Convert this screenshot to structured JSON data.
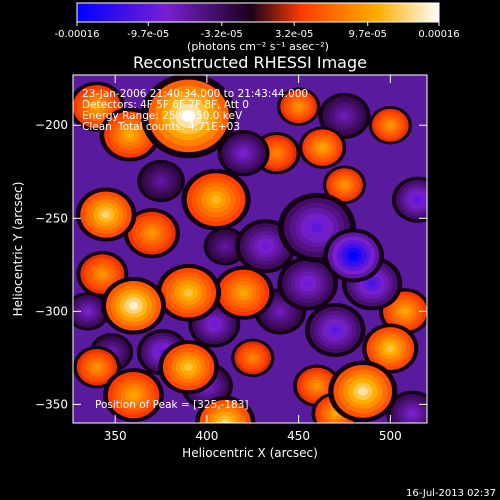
{
  "colorbar": {
    "tick_labels": [
      "-0.00016",
      "-9.7e-05",
      "-3.2e-05",
      "3.2e-05",
      "9.7e-05",
      "0.00016"
    ],
    "tick_values": [
      -0.00016,
      -9.7e-05,
      -3.2e-05,
      3.2e-05,
      9.7e-05,
      0.00016
    ],
    "range": [
      -0.00016,
      0.00016
    ],
    "units": "(photons cm⁻² s⁻¹ asec⁻²)",
    "colors": [
      "#0000ff",
      "#7a1fd0",
      "#1a001a",
      "#ff3a00",
      "#ffae00",
      "#ffffff"
    ]
  },
  "chart_data": {
    "type": "heatmap",
    "title": "Reconstructed RHESSI Image",
    "xlabel": "Heliocentric X (arcsec)",
    "ylabel": "Heliocentric Y (arcsec)",
    "xlim": [
      327,
      520
    ],
    "ylim": [
      -360,
      -173
    ],
    "x_ticks": [
      350,
      400,
      450,
      500
    ],
    "y_ticks": [
      -200,
      -250,
      -300,
      -350
    ],
    "annotations": {
      "time": "23-Jan-2006 21:40:34.000 to 21:43:44.000",
      "detectors": "Detectors: 4F 5F 6F 7F 8F, Att 0",
      "energy": "Energy Range: 25.0 - 50.0 keV",
      "method": "Clean",
      "counts": "Total counts: 4.71E+03",
      "peak": "Position of Peak = [325,-183]"
    },
    "blobs": [
      {
        "x": 390,
        "y": -195,
        "value": 0.00016,
        "r": 22
      },
      {
        "x": 358,
        "y": -205,
        "value": 0.000105,
        "r": 14
      },
      {
        "x": 340,
        "y": -190,
        "value": 0.0001,
        "r": 13
      },
      {
        "x": 405,
        "y": -240,
        "value": 0.00011,
        "r": 16
      },
      {
        "x": 345,
        "y": -248,
        "value": 0.00013,
        "r": 14
      },
      {
        "x": 370,
        "y": -258,
        "value": 9e-05,
        "r": 13
      },
      {
        "x": 438,
        "y": -215,
        "value": 8e-05,
        "r": 11
      },
      {
        "x": 450,
        "y": -190,
        "value": 9e-05,
        "r": 10
      },
      {
        "x": 463,
        "y": -212,
        "value": 0.0001,
        "r": 11
      },
      {
        "x": 475,
        "y": -232,
        "value": 9e-05,
        "r": 10
      },
      {
        "x": 500,
        "y": -200,
        "value": 9e-05,
        "r": 10
      },
      {
        "x": 360,
        "y": -297,
        "value": 0.00015,
        "r": 15
      },
      {
        "x": 390,
        "y": -290,
        "value": 0.00012,
        "r": 15
      },
      {
        "x": 420,
        "y": -290,
        "value": 0.0001,
        "r": 14
      },
      {
        "x": 343,
        "y": -280,
        "value": 9e-05,
        "r": 12
      },
      {
        "x": 500,
        "y": -320,
        "value": 0.00012,
        "r": 13
      },
      {
        "x": 485,
        "y": -343,
        "value": 0.00014,
        "r": 16
      },
      {
        "x": 508,
        "y": -300,
        "value": 0.0001,
        "r": 12
      },
      {
        "x": 460,
        "y": -340,
        "value": 9e-05,
        "r": 11
      },
      {
        "x": 470,
        "y": -355,
        "value": 0.0001,
        "r": 11
      },
      {
        "x": 360,
        "y": -345,
        "value": 0.0001,
        "r": 14
      },
      {
        "x": 390,
        "y": -330,
        "value": 0.00012,
        "r": 14
      },
      {
        "x": 410,
        "y": -360,
        "value": 0.00013,
        "r": 14
      },
      {
        "x": 340,
        "y": -330,
        "value": 9e-05,
        "r": 11
      },
      {
        "x": 425,
        "y": -325,
        "value": 8e-05,
        "r": 10
      },
      {
        "x": 335,
        "y": -300,
        "value": -8e-05,
        "r": 10
      },
      {
        "x": 420,
        "y": -215,
        "value": -8e-05,
        "r": 12
      },
      {
        "x": 432,
        "y": -265,
        "value": -9e-05,
        "r": 14
      },
      {
        "x": 460,
        "y": -255,
        "value": -0.0001,
        "r": 18
      },
      {
        "x": 480,
        "y": -270,
        "value": -0.00016,
        "r": 14
      },
      {
        "x": 490,
        "y": -285,
        "value": -0.00011,
        "r": 14
      },
      {
        "x": 455,
        "y": -285,
        "value": -9e-05,
        "r": 14
      },
      {
        "x": 470,
        "y": -310,
        "value": -0.0001,
        "r": 14
      },
      {
        "x": 515,
        "y": -240,
        "value": -0.0001,
        "r": 12
      },
      {
        "x": 440,
        "y": -300,
        "value": -7e-05,
        "r": 12
      },
      {
        "x": 404,
        "y": -307,
        "value": -9e-05,
        "r": 12
      },
      {
        "x": 376,
        "y": -322,
        "value": -0.0001,
        "r": 12
      },
      {
        "x": 400,
        "y": -340,
        "value": -8e-05,
        "r": 12
      },
      {
        "x": 348,
        "y": -322,
        "value": -7e-05,
        "r": 10
      },
      {
        "x": 512,
        "y": -355,
        "value": -8e-05,
        "r": 12
      },
      {
        "x": 475,
        "y": -195,
        "value": -7e-05,
        "r": 12
      },
      {
        "x": 375,
        "y": -230,
        "value": -6e-05,
        "r": 11
      },
      {
        "x": 410,
        "y": -265,
        "value": -6e-05,
        "r": 10
      }
    ]
  },
  "footer": {
    "date": "16-Jul-2013 02:37"
  }
}
